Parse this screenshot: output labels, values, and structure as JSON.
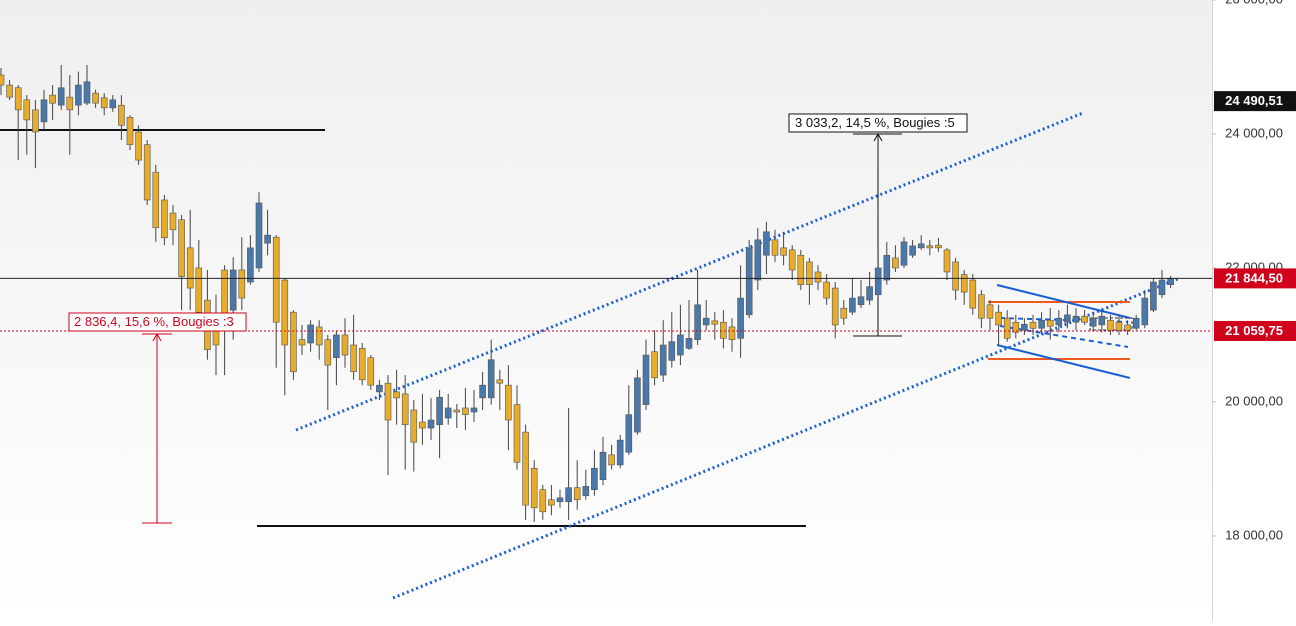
{
  "chart_data": {
    "type": "candlestick",
    "up_color": "#4a78a8",
    "down_color": "#e8ac2c",
    "ylim": [
      16730,
      26000
    ],
    "yticks": [
      {
        "value": 26000,
        "label": "26 000,00"
      },
      {
        "value": 24000,
        "label": "24 000,00"
      },
      {
        "value": 22000,
        "label": "22 000,00"
      },
      {
        "value": 20000,
        "label": "20 000,00"
      },
      {
        "value": 18000,
        "label": "18 000,00"
      }
    ],
    "price_lines": [
      {
        "value": 24490.51,
        "label": "24 490,51",
        "color": "#111111",
        "line": "none"
      },
      {
        "value": 21844.5,
        "label": "21 844,50",
        "color": "#d0021b",
        "line": "solid"
      },
      {
        "value": 21059.75,
        "label": "21 059,75",
        "color": "#d0021b",
        "line": "dotted"
      }
    ],
    "annotations": [
      "3 033,2, 14,5 %, Bougies :5",
      "2 836,4, 15,6 %, Bougies :3"
    ],
    "open": [
      24880,
      24730,
      24690,
      24510,
      24360,
      24180,
      24580,
      24430,
      24550,
      24430,
      24460,
      24610,
      24540,
      24390,
      24430,
      24250,
      24030,
      23840,
      23430,
      23015,
      22820,
      22720,
      22300,
      22000,
      21520,
      21300,
      21970,
      21370,
      21970,
      21790,
      22000,
      22370,
      22460,
      21820,
      21340,
      20930,
      20880,
      21120,
      20930,
      20660,
      21000,
      20850,
      20800,
      20660,
      20150,
      20280,
      20150,
      20120,
      19880,
      19700,
      19610,
      19660,
      19760,
      19880,
      19910,
      19850,
      20060,
      20060,
      20330,
      20250,
      19960,
      19550,
      19010,
      18690,
      18540,
      18510,
      18510,
      18720,
      18600,
      18690,
      18840,
      19210,
      19060,
      19250,
      19550,
      19960,
      20750,
      20400,
      20620,
      20700,
      20800,
      20930,
      21150,
      21210,
      21190,
      21120,
      20950,
      21300,
      21820,
      22190,
      22420,
      22300,
      22270,
      22190,
      22090,
      21940,
      21790,
      21700,
      21400,
      21340,
      21450,
      21520,
      21600,
      21820,
      22150,
      22040,
      22190,
      22300,
      22330,
      22340,
      22270,
      22090,
      21900,
      21820,
      21600,
      21450,
      21340,
      21250,
      21190,
      21070,
      21190,
      21100,
      21220,
      21150,
      21190,
      21190,
      21280,
      21130,
      21150,
      21220,
      21190,
      21150,
      21100,
      21150,
      21370,
      21600,
      21750
    ],
    "high": [
      24985,
      24806,
      24730,
      24580,
      24510,
      24660,
      24730,
      25030,
      24880,
      24930,
      25030,
      24660,
      24610,
      24580,
      24580,
      24280,
      24130,
      23910,
      23540,
      23090,
      22940,
      22790,
      22870,
      22420,
      21970,
      21600,
      22040,
      22160,
      22460,
      22490,
      23130,
      22870,
      22490,
      21850,
      21370,
      21150,
      21220,
      21220,
      21000,
      21070,
      21250,
      21300,
      20880,
      20700,
      20330,
      20400,
      20480,
      20400,
      20030,
      20120,
      20060,
      20180,
      20120,
      19970,
      20210,
      20180,
      20450,
      20930,
      20480,
      20550,
      20250,
      19660,
      19130,
      18760,
      18760,
      18690,
      19910,
      19130,
      18990,
      19280,
      19480,
      19360,
      19510,
      20250,
      20480,
      20930,
      21070,
      21220,
      21340,
      21450,
      21520,
      21970,
      21520,
      21340,
      21370,
      21250,
      22040,
      22420,
      22600,
      22690,
      22570,
      22540,
      22340,
      22270,
      22150,
      22040,
      21910,
      21790,
      21520,
      21850,
      21820,
      21940,
      22250,
      22390,
      22340,
      22460,
      22420,
      22490,
      22420,
      22450,
      22300,
      22150,
      21970,
      21910,
      21670,
      21520,
      21450,
      21370,
      21300,
      21250,
      21300,
      21340,
      21400,
      21370,
      21450,
      21400,
      21370,
      21340,
      21370,
      21300,
      21300,
      21220,
      21300,
      21670,
      21850,
      21970,
      21880
    ],
    "low": [
      24580,
      24507,
      23610,
      23690,
      23490,
      24060,
      24210,
      24360,
      23690,
      24280,
      24430,
      24390,
      24280,
      24330,
      23910,
      23760,
      23540,
      22940,
      22390,
      22340,
      22340,
      21370,
      21370,
      21150,
      20630,
      20400,
      20400,
      20930,
      21370,
      21750,
      21940,
      22190,
      20510,
      20100,
      20330,
      20700,
      20750,
      20630,
      19880,
      20250,
      20510,
      20330,
      20250,
      20180,
      20030,
      18910,
      19660,
      18990,
      18960,
      19360,
      19430,
      19160,
      19660,
      19610,
      19580,
      19700,
      19880,
      19960,
      19880,
      19280,
      18990,
      18240,
      18210,
      18240,
      18310,
      18420,
      18240,
      18390,
      18540,
      18600,
      18760,
      18990,
      19010,
      19210,
      19510,
      19880,
      20250,
      20300,
      20510,
      20550,
      20780,
      20850,
      21070,
      20930,
      20800,
      20750,
      20660,
      21250,
      21670,
      21910,
      22090,
      22040,
      21820,
      21670,
      21450,
      21670,
      21450,
      20950,
      21150,
      21300,
      21400,
      21450,
      21550,
      21750,
      21940,
      22000,
      22150,
      22270,
      22190,
      22240,
      21820,
      21520,
      21450,
      21300,
      21100,
      21070,
      20850,
      20900,
      20950,
      21000,
      21000,
      21010,
      20930,
      21040,
      21100,
      21070,
      21150,
      21070,
      21040,
      21000,
      21000,
      21000,
      21070,
      21100,
      21340,
      21550,
      21700
    ],
    "close": [
      24730,
      24550,
      24360,
      24210,
      24030,
      24510,
      24460,
      24690,
      24360,
      24730,
      24780,
      24460,
      24390,
      24510,
      24130,
      23840,
      23610,
      23015,
      22600,
      22450,
      22570,
      21870,
      21700,
      21340,
      20780,
      20850,
      21150,
      21970,
      21550,
      22300,
      22970,
      22490,
      21190,
      20850,
      20450,
      20850,
      21150,
      20850,
      20550,
      21000,
      20700,
      20450,
      20330,
      20250,
      20250,
      19730,
      20060,
      19660,
      19400,
      19610,
      19730,
      20070,
      19910,
      19850,
      19810,
      19910,
      20250,
      20630,
      20280,
      19730,
      19100,
      18460,
      18420,
      18360,
      18460,
      18570,
      18720,
      18540,
      18740,
      19010,
      19250,
      19060,
      19430,
      19810,
      20360,
      20700,
      20360,
      20850,
      20900,
      21000,
      20950,
      21450,
      21250,
      21160,
      20950,
      20930,
      21550,
      22300,
      22420,
      22540,
      22190,
      22190,
      21970,
      21750,
      21750,
      21790,
      21550,
      21150,
      21250,
      21550,
      21570,
      21720,
      22000,
      22190,
      22000,
      22390,
      22330,
      22360,
      22300,
      22300,
      21940,
      21670,
      21640,
      21400,
      21250,
      21250,
      21150,
      20950,
      21040,
      21160,
      21100,
      21220,
      21130,
      21250,
      21300,
      21280,
      21190,
      21250,
      21280,
      21070,
      21070,
      21070,
      21250,
      21550,
      21790,
      21820,
      21840
    ]
  }
}
